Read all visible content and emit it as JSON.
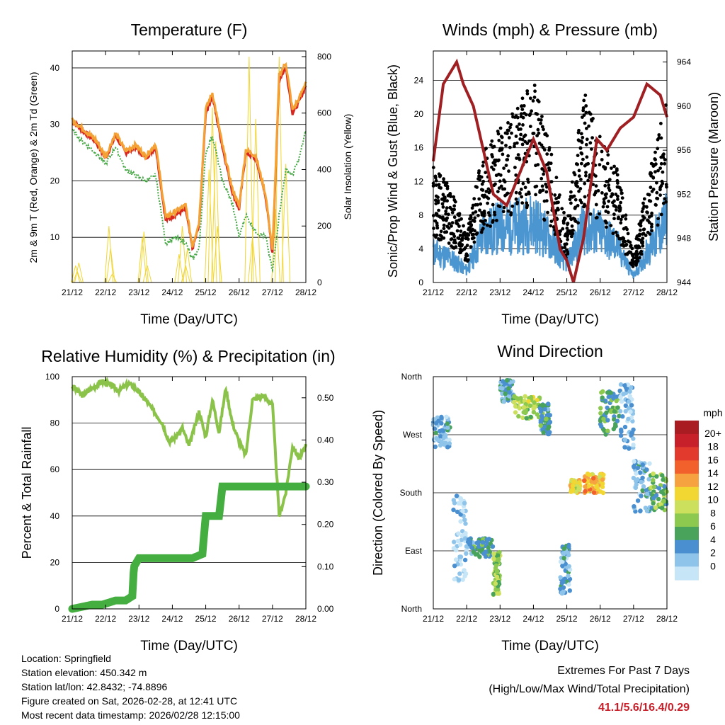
{
  "days": [
    "21/12",
    "22/12",
    "23/12",
    "24/12",
    "25/12",
    "26/12",
    "27/12",
    "28/12"
  ],
  "xlabel": "Time (Day/UTC)",
  "charts": {
    "temperature": {
      "type": "line",
      "title": "Temperature (F)",
      "ylabel_left": "2m & 9m T (Red, Orange) & 2m Td (Green)",
      "ylabel_right": "Solar Insolation (Yellow)",
      "yticks_left": [
        "10",
        "20",
        "30",
        "40"
      ],
      "yticks_right": [
        "0",
        "200",
        "400",
        "600",
        "800"
      ],
      "ylim_left": [
        2,
        43
      ],
      "ylim_right": [
        0,
        820
      ],
      "series": [
        {
          "name": "2m T",
          "color": "#d7261e",
          "t": [
            0,
            0.3,
            0.7,
            1,
            1.3,
            1.6,
            1.9,
            2.2,
            2.5,
            2.8,
            3.1,
            3.4,
            3.6,
            3.8,
            4,
            4.2,
            4.5,
            4.8,
            5,
            5.2,
            5.5,
            5.8,
            6,
            6.2,
            6.4,
            6.6,
            6.8,
            7
          ],
          "v": [
            30.5,
            29,
            27,
            24,
            28,
            25,
            26,
            24,
            26,
            13,
            14,
            15,
            8,
            12,
            32,
            35,
            26,
            18,
            15,
            25,
            24,
            17,
            7,
            38,
            40,
            32,
            34,
            37
          ]
        },
        {
          "name": "9m T",
          "color": "#f4a235",
          "t": [
            0,
            0.3,
            0.7,
            1,
            1.3,
            1.6,
            1.9,
            2.2,
            2.5,
            2.8,
            3.1,
            3.4,
            3.6,
            3.8,
            4,
            4.2,
            4.5,
            4.8,
            5,
            5.2,
            5.5,
            5.8,
            6,
            6.2,
            6.4,
            6.6,
            6.8,
            7
          ],
          "v": [
            30.8,
            29.3,
            27.3,
            24.3,
            28.4,
            25.3,
            26.4,
            24.4,
            26.5,
            13.6,
            14.6,
            15.7,
            8.5,
            12.6,
            32.7,
            35.6,
            26.4,
            18.5,
            15.5,
            25.5,
            24.4,
            17.4,
            7.6,
            38.8,
            40.9,
            32.6,
            34.6,
            37.6
          ]
        },
        {
          "name": "2m Td",
          "color": "#46a845",
          "t": [
            0,
            0.3,
            0.7,
            1,
            1.3,
            1.6,
            1.9,
            2.2,
            2.5,
            2.8,
            3.1,
            3.4,
            3.6,
            3.8,
            4,
            4.2,
            4.5,
            4.8,
            5,
            5.2,
            5.5,
            5.8,
            6,
            6.2,
            6.4,
            6.6,
            6.8,
            7
          ],
          "v": [
            29,
            27,
            25,
            23,
            26,
            22,
            21,
            20,
            21,
            9,
            10,
            9,
            6,
            8,
            25,
            28,
            20,
            16,
            10,
            14,
            11,
            10,
            4,
            14,
            22,
            21,
            24,
            29
          ]
        }
      ],
      "insolation": {
        "color": "#f2d631",
        "t": [
          0.1,
          0.15,
          0.2,
          1.1,
          1.15,
          1.2,
          2.1,
          2.15,
          2.25,
          3.2,
          3.3,
          3.4,
          3.45,
          4.1,
          4.2,
          4.3,
          4.35,
          5.3,
          5.4,
          5.5,
          6.1,
          6.2,
          6.4
        ],
        "v": [
          60,
          40,
          70,
          200,
          120,
          30,
          160,
          180,
          60,
          100,
          200,
          60,
          120,
          400,
          620,
          500,
          200,
          800,
          160,
          580,
          260,
          800,
          420
        ]
      }
    },
    "winds": {
      "type": "scatter",
      "title": "Winds (mph) & Pressure (mb)",
      "ylabel_left": "Sonic/Prop Wind & Gust (Blue, Black)",
      "ylabel_right": "Station Pressure (Maroon)",
      "yticks_left": [
        "0",
        "4",
        "8",
        "12",
        "16",
        "20",
        "24"
      ],
      "yticks_right": [
        "944",
        "948",
        "952",
        "956",
        "960",
        "964"
      ],
      "ylim_left": [
        0,
        27.5
      ],
      "ylim_right": [
        944,
        965
      ],
      "wind_gust_peaks": {
        "t": [
          0,
          0.5,
          1,
          1.5,
          2,
          2.5,
          3,
          3.5,
          4,
          4.5,
          5,
          5.5,
          6,
          6.5,
          7
        ],
        "v": [
          12,
          10,
          5,
          14,
          16,
          18,
          21,
          14,
          6,
          20,
          15,
          12,
          3,
          12,
          19
        ]
      },
      "wind_speed_peaks": {
        "t": [
          0,
          0.5,
          1,
          1.5,
          2,
          2.5,
          3,
          3.5,
          4,
          4.5,
          5,
          5.5,
          6,
          6.5,
          7
        ],
        "v": [
          5,
          4,
          2,
          8,
          9,
          9,
          10,
          7,
          3,
          9,
          8,
          6,
          1,
          6,
          10
        ]
      },
      "pressure": {
        "color": "#a01f22",
        "t": [
          0,
          0.3,
          0.7,
          0.9,
          1.2,
          1.5,
          1.8,
          2.2,
          2.6,
          3,
          3.4,
          3.8,
          4,
          4.2,
          4.5,
          4.9,
          5.2,
          5.6,
          6,
          6.4,
          6.8,
          7
        ],
        "v": [
          955,
          962,
          964,
          962,
          960,
          956,
          952,
          951,
          954,
          957,
          954,
          947,
          946,
          944,
          948,
          957,
          956,
          958,
          959,
          962,
          961,
          959
        ]
      }
    },
    "humidity": {
      "type": "line",
      "title": "Relative Humidity (%) & Precipitation (in)",
      "ylabel_left": "Percent & Total Rainfall",
      "yticks_left": [
        "0",
        "20",
        "40",
        "60",
        "80",
        "100"
      ],
      "yticks_right": [
        "0.00",
        "0.10",
        "0.20",
        "0.30",
        "0.40",
        "0.50"
      ],
      "ylim_left": [
        0,
        100
      ],
      "ylim_right": [
        0,
        0.55
      ],
      "rh": {
        "color": "#8bc34a",
        "t": [
          0,
          0.3,
          0.6,
          0.9,
          1.2,
          1.4,
          1.7,
          1.9,
          2.2,
          2.5,
          2.7,
          2.9,
          3.1,
          3.3,
          3.5,
          3.8,
          4,
          4.2,
          4.4,
          4.6,
          4.8,
          5,
          5.2,
          5.4,
          5.7,
          6,
          6.2,
          6.4,
          6.6,
          6.8,
          7
        ],
        "v": [
          96,
          92,
          95,
          98,
          96,
          94,
          97,
          95,
          90,
          84,
          80,
          72,
          74,
          78,
          70,
          85,
          74,
          90,
          76,
          95,
          80,
          72,
          66,
          90,
          92,
          88,
          40,
          50,
          70,
          65,
          70
        ]
      },
      "precip": {
        "color": "#45ae40",
        "t": [
          0,
          0.6,
          0.9,
          1.3,
          1.6,
          1.8,
          1.85,
          2.0,
          2.3,
          2.6,
          2.9,
          3.6,
          3.9,
          4.0,
          4.4,
          4.5,
          4.7,
          5.0,
          5.6,
          6.2,
          6.6,
          7
        ],
        "v": [
          0,
          0.01,
          0.01,
          0.02,
          0.02,
          0.03,
          0.1,
          0.12,
          0.12,
          0.12,
          0.12,
          0.12,
          0.13,
          0.22,
          0.22,
          0.29,
          0.29,
          0.29,
          0.29,
          0.29,
          0.29,
          0.29
        ]
      }
    },
    "direction": {
      "type": "scatter",
      "title": "Wind Direction",
      "ylabel": "Direction (Colored By Speed)",
      "yticks": [
        "North",
        "East",
        "South",
        "West",
        "North"
      ],
      "clusters": [
        {
          "t0": 0,
          "t1": 0.5,
          "d0": 250,
          "d1": 300,
          "s": 3
        },
        {
          "t0": 0.6,
          "t1": 1,
          "d0": 40,
          "d1": 180,
          "s": 1
        },
        {
          "t0": 1,
          "t1": 1.8,
          "d0": 80,
          "d1": 110,
          "s": 5
        },
        {
          "t0": 1.8,
          "t1": 2,
          "d0": 20,
          "d1": 90,
          "s": 8
        },
        {
          "t0": 2,
          "t1": 2.4,
          "d0": 320,
          "d1": 355,
          "s": 4
        },
        {
          "t0": 2.4,
          "t1": 3.2,
          "d0": 295,
          "d1": 330,
          "s": 9
        },
        {
          "t0": 3.2,
          "t1": 3.5,
          "d0": 270,
          "d1": 320,
          "s": 5
        },
        {
          "t0": 3.8,
          "t1": 4.1,
          "d0": 20,
          "d1": 100,
          "s": 3
        },
        {
          "t0": 4.1,
          "t1": 4.4,
          "d0": 180,
          "d1": 200,
          "s": 11
        },
        {
          "t0": 4.5,
          "t1": 5.1,
          "d0": 180,
          "d1": 210,
          "s": 13
        },
        {
          "t0": 5,
          "t1": 5.6,
          "d0": 270,
          "d1": 340,
          "s": 6
        },
        {
          "t0": 5.6,
          "t1": 6,
          "d0": 240,
          "d1": 350,
          "s": 2
        },
        {
          "t0": 6,
          "t1": 6.5,
          "d0": 150,
          "d1": 230,
          "s": 3
        },
        {
          "t0": 6.5,
          "t1": 7,
          "d0": 150,
          "d1": 210,
          "s": 7
        }
      ],
      "colorbar": {
        "title": "mph",
        "labels": [
          "20+",
          "18",
          "16",
          "14",
          "12",
          "10",
          "8",
          "6",
          "4",
          "2",
          "0"
        ],
        "colors": [
          "#a81c22",
          "#c8202a",
          "#e23b2e",
          "#f2602c",
          "#f6a241",
          "#f2d631",
          "#cde05d",
          "#8cc94e",
          "#49a35b",
          "#4a8fcf",
          "#8fc4ea",
          "#c6e5f7"
        ]
      }
    }
  },
  "info": {
    "location": "Location: Springfield",
    "elevation": "Station elevation: 450.342 m",
    "latlon": "Station lat/lon: 42.8432; -74.8896",
    "created": "Figure created on Sat, 2026-02-28, at 12:41 UTC",
    "recent": "Most recent data timestamp: 2026/02/28 12:15:00"
  },
  "extremes": {
    "title": "Extremes For Past 7 Days",
    "subtitle": "(High/Low/Max Wind/Total Precipitation)",
    "values": "41.1/5.6/16.4/0.29"
  }
}
